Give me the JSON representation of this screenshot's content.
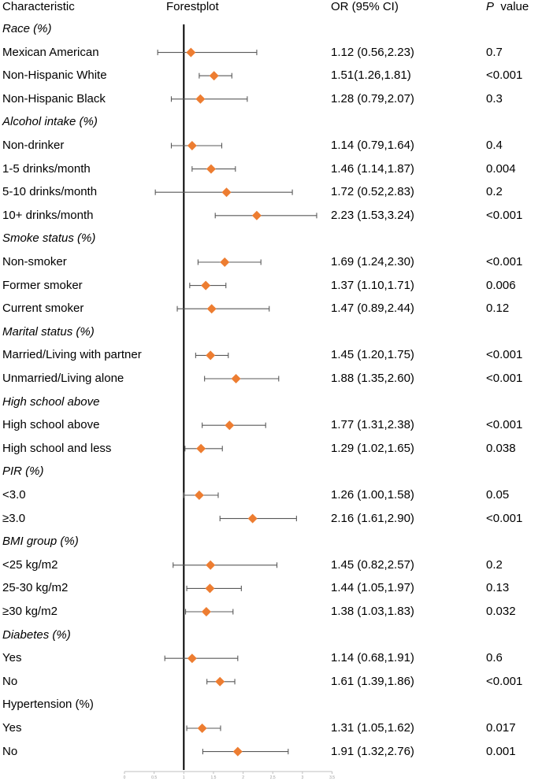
{
  "headers": {
    "characteristic": "Characteristic",
    "forestplot": "Forestplot",
    "or_ci": "OR (95% CI)",
    "p_italic": "P",
    "p_rest": "value"
  },
  "colors": {
    "marker": "#ED7D31",
    "ci_line": "#595959",
    "ref_line": "#000000",
    "axis": "#bfbfbf",
    "tick_text": "#9a9a9a"
  },
  "chart_data": {
    "type": "forest",
    "title": "Forestplot",
    "reference_value": 1,
    "xlim": [
      0,
      3.5
    ],
    "x_ticks": [
      "0",
      "0.5",
      "1",
      "1.5",
      "2",
      "2.5",
      "3",
      "3.5"
    ],
    "rows": [
      {
        "kind": "group",
        "label": "Race (%)",
        "italic": true
      },
      {
        "kind": "item",
        "label": "Mexican American",
        "or": 1.12,
        "lo": 0.56,
        "hi": 2.23,
        "or_text": "1.12 (0.56,2.23)",
        "p": "0.7"
      },
      {
        "kind": "item",
        "label": "Non-Hispanic White",
        "or": 1.51,
        "lo": 1.26,
        "hi": 1.81,
        "or_text": "1.51(1.26,1.81)",
        "p": "<0.001"
      },
      {
        "kind": "item",
        "label": "Non-Hispanic Black",
        "or": 1.28,
        "lo": 0.79,
        "hi": 2.07,
        "or_text": "1.28 (0.79,2.07)",
        "p": "0.3"
      },
      {
        "kind": "group",
        "label": "Alcohol intake (%)",
        "italic": true
      },
      {
        "kind": "item",
        "label": "Non-drinker",
        "or": 1.14,
        "lo": 0.79,
        "hi": 1.64,
        "or_text": "1.14 (0.79,1.64)",
        "p": "0.4"
      },
      {
        "kind": "item",
        "label": "1-5 drinks/month",
        "or": 1.46,
        "lo": 1.14,
        "hi": 1.87,
        "or_text": "1.46 (1.14,1.87)",
        "p": "0.004"
      },
      {
        "kind": "item",
        "label": "5-10 drinks/month",
        "or": 1.72,
        "lo": 0.52,
        "hi": 2.83,
        "or_text": "1.72 (0.52,2.83)",
        "p": "0.2"
      },
      {
        "kind": "item",
        "label": "10+ drinks/month",
        "or": 2.23,
        "lo": 1.53,
        "hi": 3.24,
        "or_text": "2.23 (1.53,3.24)",
        "p": "<0.001"
      },
      {
        "kind": "group",
        "label": "Smoke status (%)",
        "italic": true
      },
      {
        "kind": "item",
        "label": "Non-smoker",
        "or": 1.69,
        "lo": 1.24,
        "hi": 2.3,
        "or_text": "1.69 (1.24,2.30)",
        "p": "<0.001"
      },
      {
        "kind": "item",
        "label": "Former smoker",
        "or": 1.37,
        "lo": 1.1,
        "hi": 1.71,
        "or_text": "1.37 (1.10,1.71)",
        "p": "0.006"
      },
      {
        "kind": "item",
        "label": "Current smoker",
        "or": 1.47,
        "lo": 0.89,
        "hi": 2.44,
        "or_text": "1.47 (0.89,2.44)",
        "p": "0.12"
      },
      {
        "kind": "group",
        "label": "Marital status (%)",
        "italic": true
      },
      {
        "kind": "item",
        "label": "Married/Living with partner",
        "or": 1.45,
        "lo": 1.2,
        "hi": 1.75,
        "or_text": "1.45 (1.20,1.75)",
        "p": "<0.001"
      },
      {
        "kind": "item",
        "label": "Unmarried/Living alone",
        "or": 1.88,
        "lo": 1.35,
        "hi": 2.6,
        "or_text": "1.88 (1.35,2.60)",
        "p": "<0.001"
      },
      {
        "kind": "group",
        "label": "High school above",
        "italic": true
      },
      {
        "kind": "item",
        "label": "High school above",
        "or": 1.77,
        "lo": 1.31,
        "hi": 2.38,
        "or_text": "1.77 (1.31,2.38)",
        "p": "<0.001"
      },
      {
        "kind": "item",
        "label": "High school and less",
        "or": 1.29,
        "lo": 1.02,
        "hi": 1.65,
        "or_text": "1.29 (1.02,1.65)",
        "p": "0.038"
      },
      {
        "kind": "group",
        "label": "PIR (%)",
        "italic": true
      },
      {
        "kind": "item",
        "label": "<3.0",
        "or": 1.26,
        "lo": 1.0,
        "hi": 1.58,
        "or_text": "1.26 (1.00,1.58)",
        "p": "0.05"
      },
      {
        "kind": "item",
        "label": "≥3.0",
        "or": 2.16,
        "lo": 1.61,
        "hi": 2.9,
        "or_text": "2.16 (1.61,2.90)",
        "p": "<0.001"
      },
      {
        "kind": "group",
        "label": "BMI group (%)",
        "italic": true
      },
      {
        "kind": "item",
        "label": "<25 kg/m2",
        "or": 1.45,
        "lo": 0.82,
        "hi": 2.57,
        "or_text": "1.45 (0.82,2.57)",
        "p": "0.2"
      },
      {
        "kind": "item",
        "label": "25-30 kg/m2",
        "or": 1.44,
        "lo": 1.05,
        "hi": 1.97,
        "or_text": "1.44 (1.05,1.97)",
        "p": "0.13"
      },
      {
        "kind": "item",
        "label": "≥30 kg/m2",
        "or": 1.38,
        "lo": 1.03,
        "hi": 1.83,
        "or_text": "1.38 (1.03,1.83)",
        "p": "0.032"
      },
      {
        "kind": "group",
        "label": "Diabetes (%)",
        "italic": true
      },
      {
        "kind": "item",
        "label": "Yes",
        "or": 1.14,
        "lo": 0.68,
        "hi": 1.91,
        "or_text": "1.14 (0.68,1.91)",
        "p": "0.6"
      },
      {
        "kind": "item",
        "label": "No",
        "or": 1.61,
        "lo": 1.39,
        "hi": 1.86,
        "or_text": "1.61 (1.39,1.86)",
        "p": "<0.001"
      },
      {
        "kind": "group",
        "label": "Hypertension (%)",
        "italic": false
      },
      {
        "kind": "item",
        "label": "Yes",
        "or": 1.31,
        "lo": 1.05,
        "hi": 1.62,
        "or_text": "1.31 (1.05,1.62)",
        "p": "0.017"
      },
      {
        "kind": "item",
        "label": "No",
        "or": 1.91,
        "lo": 1.32,
        "hi": 2.76,
        "or_text": "1.91 (1.32,2.76)",
        "p": "0.001"
      }
    ]
  }
}
